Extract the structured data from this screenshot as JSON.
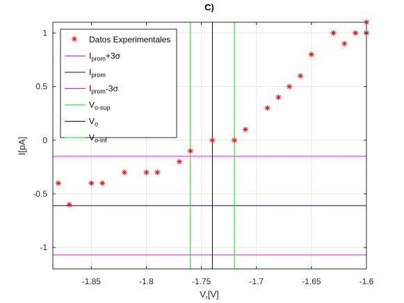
{
  "chart_data": {
    "type": "scatter",
    "title": "C)",
    "xlabel": {
      "main": "V",
      "sub": "r",
      "tail": "[V]"
    },
    "ylabel": "I[pA]",
    "xlim": [
      -1.885,
      -1.6
    ],
    "ylim": [
      -1.2,
      1.1
    ],
    "grid": true,
    "legend_position": "top-left",
    "x_ticks": [
      {
        "value": -1.85,
        "label": "-1.85"
      },
      {
        "value": -1.8,
        "label": "-1.8"
      },
      {
        "value": -1.75,
        "label": "-1.75"
      },
      {
        "value": -1.7,
        "label": "-1.7"
      },
      {
        "value": -1.65,
        "label": "-1.65"
      },
      {
        "value": -1.6,
        "label": "-1.6"
      }
    ],
    "y_ticks": [
      {
        "value": 1,
        "label": "1"
      },
      {
        "value": 0.5,
        "label": "0.5"
      },
      {
        "value": 0,
        "label": "0"
      },
      {
        "value": -0.5,
        "label": "-0.5"
      },
      {
        "value": -1,
        "label": "-1"
      }
    ],
    "series": [
      {
        "name": "Datos Experimentales",
        "kind": "points",
        "marker": "asterisk",
        "color": "#ff0000",
        "points": [
          [
            -1.88,
            -0.4
          ],
          [
            -1.87,
            -0.6
          ],
          [
            -1.85,
            -0.4
          ],
          [
            -1.84,
            -0.4
          ],
          [
            -1.82,
            -0.3
          ],
          [
            -1.8,
            -0.3
          ],
          [
            -1.79,
            -0.3
          ],
          [
            -1.77,
            -0.2
          ],
          [
            -1.76,
            -0.1
          ],
          [
            -1.74,
            0.0
          ],
          [
            -1.72,
            0.0
          ],
          [
            -1.71,
            0.1
          ],
          [
            -1.69,
            0.3
          ],
          [
            -1.68,
            0.4
          ],
          [
            -1.67,
            0.5
          ],
          [
            -1.66,
            0.6
          ],
          [
            -1.65,
            0.8
          ],
          [
            -1.63,
            1.0
          ],
          [
            -1.62,
            0.9
          ],
          [
            -1.61,
            1.0
          ],
          [
            -1.6,
            1.1
          ],
          [
            -1.6,
            1.0
          ]
        ]
      },
      {
        "label_main": "I",
        "label_sub": "prom",
        "label_tail": "+3σ",
        "kind": "hline",
        "value": -0.15,
        "color": "#ff00ff"
      },
      {
        "label_main": "I",
        "label_sub": "prom",
        "label_tail": "",
        "kind": "hline",
        "value": -0.61,
        "color": "#00008b"
      },
      {
        "label_main": "I",
        "label_sub": "prom",
        "label_tail": "-3σ",
        "kind": "hline",
        "value": -1.07,
        "color": "#ff00ff"
      },
      {
        "label_main": "V",
        "label_sub": "o-sup",
        "label_tail": "",
        "kind": "vline",
        "value": -1.72,
        "color": "#00e000"
      },
      {
        "label_main": "V",
        "label_sub": "o",
        "label_tail": "",
        "kind": "vline",
        "value": -1.74,
        "color": "#000000"
      },
      {
        "label_main": "V",
        "label_sub": "o-inf",
        "label_tail": "",
        "kind": "vline",
        "value": -1.76,
        "color": "#00e000"
      }
    ]
  }
}
